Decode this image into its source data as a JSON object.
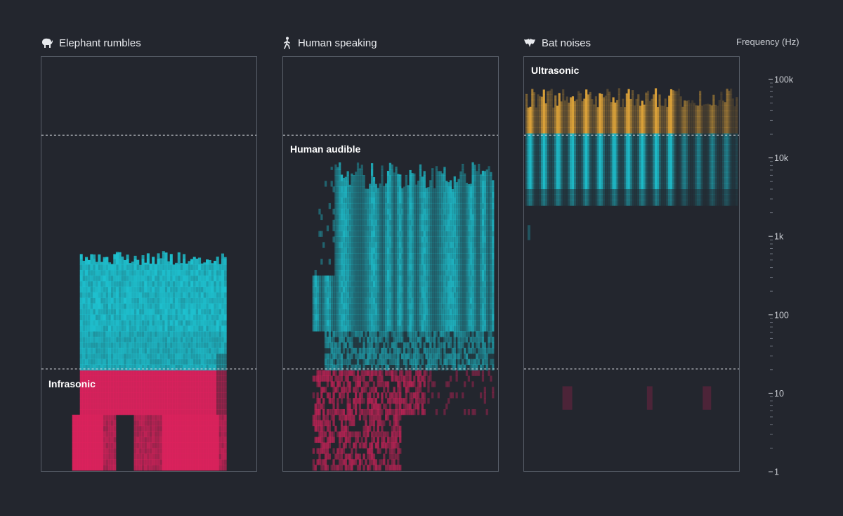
{
  "chart_data": {
    "type": "heatmap",
    "yaxis": {
      "title": "Frequency (Hz)",
      "scale": "log",
      "range": [
        1,
        200000
      ],
      "ticks": [
        {
          "value": 100000,
          "label": "100k"
        },
        {
          "value": 10000,
          "label": "10k"
        },
        {
          "value": 1000,
          "label": "1k"
        },
        {
          "value": 100,
          "label": "100"
        },
        {
          "value": 10,
          "label": "10"
        },
        {
          "value": 1,
          "label": "1"
        }
      ]
    },
    "thresholds": [
      {
        "name": "Ultrasonic",
        "above_hz": 20000
      },
      {
        "name": "Human audible",
        "from_hz": 20,
        "to_hz": 20000
      },
      {
        "name": "Infrasonic",
        "below_hz": 20
      }
    ],
    "colors": {
      "ultrasonic": "#e3a73a",
      "audible": "#1ec1cf",
      "infrasonic": "#e0225e",
      "background": "#23262e",
      "panel_border": "#585e69"
    },
    "panels": [
      {
        "title": "Elephant rumbles",
        "icon": "elephant-icon",
        "band_label": "Infrasonic",
        "band_label_hz": 15,
        "freq_min_hz": 1,
        "freq_max_hz": 600
      },
      {
        "title": "Human speaking",
        "icon": "person-walking-icon",
        "band_label": "Human audible",
        "band_label_hz": 15000,
        "freq_min_hz": 1,
        "freq_max_hz": 9000
      },
      {
        "title": "Bat noises",
        "icon": "bat-icon",
        "band_label": "Ultrasonic",
        "band_label_hz": 150000,
        "freq_min_hz": 2500,
        "freq_max_hz": 100000
      }
    ]
  }
}
